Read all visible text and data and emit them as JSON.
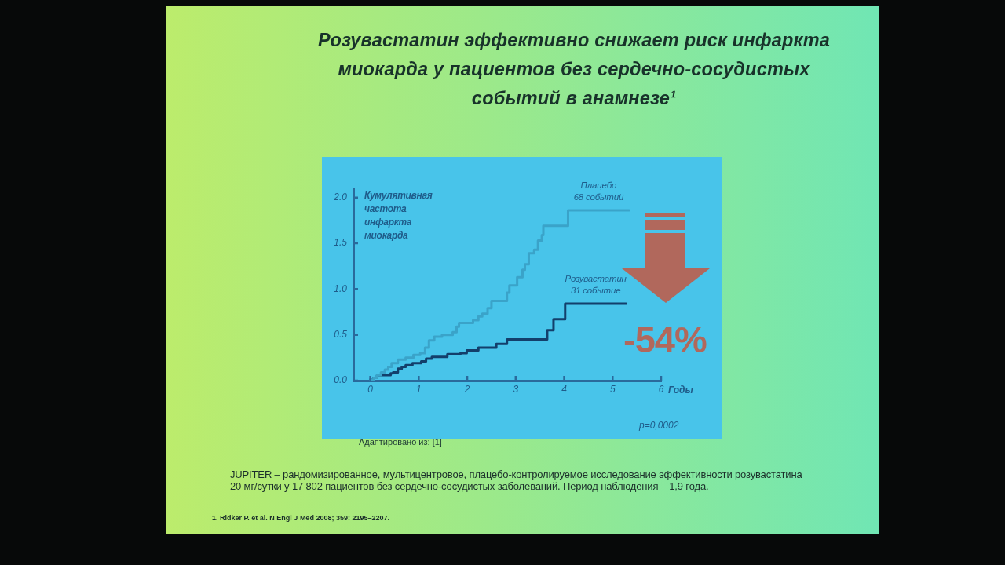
{
  "chart_data": {
    "type": "step",
    "title": "Розувастатин эффективно снижает риск инфаркта миокарда у пациентов без сердечно-сосудистых событий в анамнезе¹",
    "xlabel": "Годы",
    "ylabel": "Кумулятивная частота инфаркта миокарда",
    "xlim": [
      -0.35,
      6
    ],
    "xticks": [
      0,
      1,
      2,
      3,
      4,
      5,
      6
    ],
    "ylim": [
      0,
      2.1
    ],
    "yticks": [
      {
        "value": 0,
        "label": "0.0"
      },
      0.5,
      {
        "value": 1,
        "label": "1.0"
      },
      1.5,
      {
        "value": 2,
        "label": "2.0"
      }
    ],
    "series": [
      {
        "name": "Плацебо 68 событий",
        "color": "#3aa3c9",
        "x": [
          0,
          0.07,
          0.14,
          0.22,
          0.3,
          0.37,
          0.44,
          0.57,
          0.73,
          0.89,
          1.03,
          1.13,
          1.21,
          1.32,
          1.48,
          1.7,
          1.78,
          1.83,
          2.02,
          2.12,
          2.23,
          2.31,
          2.42,
          2.5,
          2.76,
          2.82,
          2.87,
          3.03,
          3.14,
          3.19,
          3.27,
          3.38,
          3.46,
          3.54,
          3.57,
          4.08,
          4.08,
          5.34
        ],
        "values": [
          0.01,
          0.03,
          0.06,
          0.09,
          0.12,
          0.15,
          0.19,
          0.23,
          0.25,
          0.28,
          0.3,
          0.36,
          0.44,
          0.48,
          0.5,
          0.53,
          0.59,
          0.63,
          0.63,
          0.66,
          0.7,
          0.73,
          0.79,
          0.87,
          0.87,
          0.96,
          1.04,
          1.13,
          1.21,
          1.27,
          1.39,
          1.43,
          1.53,
          1.59,
          1.69,
          1.69,
          1.86,
          1.86
        ]
      },
      {
        "name": "Розувастатин 31 событие",
        "color": "#133f6b",
        "x": [
          0,
          0.07,
          0.14,
          0.36,
          0.42,
          0.47,
          0.57,
          0.65,
          0.73,
          0.87,
          1.05,
          1.15,
          1.27,
          1.59,
          1.86,
          1.99,
          2.23,
          2.55,
          2.6,
          2.71,
          2.82,
          3.62,
          3.65,
          3.78,
          4.02,
          5.28
        ],
        "values": [
          0.01,
          0.03,
          0.06,
          0.06,
          0.08,
          0.09,
          0.13,
          0.15,
          0.17,
          0.19,
          0.21,
          0.24,
          0.26,
          0.29,
          0.3,
          0.33,
          0.36,
          0.36,
          0.4,
          0.4,
          0.45,
          0.45,
          0.55,
          0.67,
          0.84,
          0.84
        ]
      }
    ],
    "annotations": [
      "-54%",
      "p=0,0002",
      "Адаптировано из: [1]",
      "JUPITER – рандомизированное, мультицентровое, плацебо-контролируемое исследование эффективности розувастатина 20 мг/сутки у 17 802 пациентов без сердечно-сосудистых заболеваний. Период наблюдения – 1,9 года.",
      "1. Ridker P. et al. N Engl J Med 2008; 359: 2195–2207."
    ]
  }
}
